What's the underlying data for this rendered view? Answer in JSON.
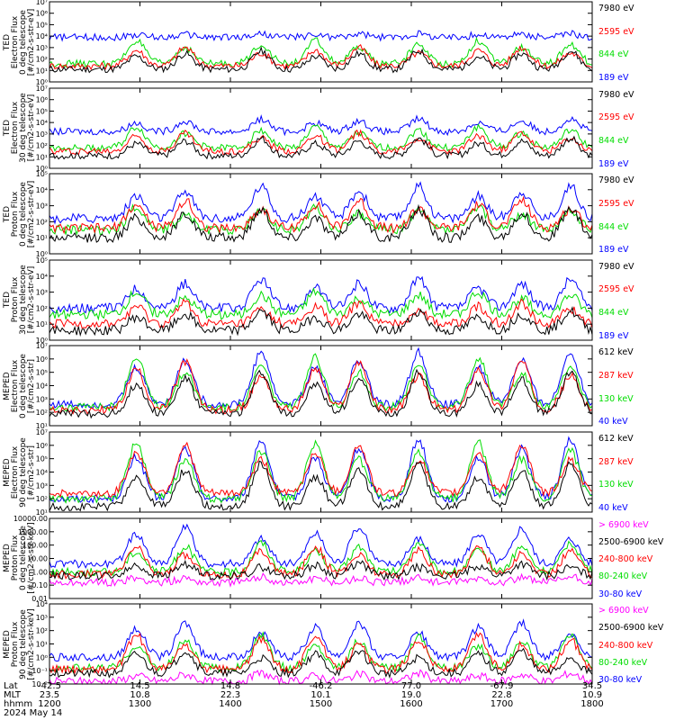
{
  "figure": {
    "date": "2024 May 14",
    "x_rows": [
      "Lat",
      "MLT",
      "hhmm"
    ],
    "x_ticks": [
      {
        "lat": "-42.5",
        "mlt": "23.5",
        "hhmm": "1200"
      },
      {
        "lat": "14.5",
        "mlt": "10.8",
        "hhmm": "1300"
      },
      {
        "lat": "14.8",
        "mlt": "22.3",
        "hhmm": "1400"
      },
      {
        "lat": "-46.2",
        "mlt": "10.1",
        "hhmm": "1500"
      },
      {
        "lat": "77.0",
        "mlt": "19.0",
        "hhmm": "1600"
      },
      {
        "lat": "-67.9",
        "mlt": "22.8",
        "hhmm": "1700"
      },
      {
        "lat": "34.5",
        "mlt": "10.9",
        "hhmm": "1800"
      }
    ]
  },
  "colors": {
    "black": "#000000",
    "blue": "#0000ff",
    "red": "#ff0000",
    "green": "#00dd00",
    "magenta": "#ff00ff"
  },
  "chart_data": [
    {
      "type": "line",
      "ylabel": [
        "TED",
        "Electron Flux",
        "0 deg telescope",
        "[#/cm2-s-str-eV]"
      ],
      "yscale": "log",
      "ylim_exp": [
        0,
        7
      ],
      "tick_labels": [
        "10⁰",
        "10¹",
        "10²",
        "10³",
        "10⁴",
        "10⁵",
        "10⁶",
        "10⁷"
      ],
      "x": [
        1200,
        1800
      ],
      "series": [
        {
          "name": "7980 eV",
          "color": "#000000",
          "base": 1.1,
          "peak": 2.7
        },
        {
          "name": "2595 eV",
          "color": "#ff0000",
          "base": 1.4,
          "peak": 3.0
        },
        {
          "name": "844 eV",
          "color": "#00dd00",
          "base": 1.6,
          "peak": 3.6
        },
        {
          "name": "189 eV",
          "color": "#0000ff",
          "base": 3.9,
          "peak": 4.2
        }
      ]
    },
    {
      "type": "line",
      "ylabel": [
        "TED",
        "Electron Flux",
        "30 deg telescope",
        "[#/cm2-s-str-eV]"
      ],
      "yscale": "log",
      "ylim_exp": [
        0,
        7
      ],
      "tick_labels": [
        "10⁰",
        "10¹",
        "10²",
        "10³",
        "10⁴",
        "10⁵",
        "10⁶",
        "10⁷"
      ],
      "x": [
        1200,
        1800
      ],
      "series": [
        {
          "name": "7980 eV",
          "color": "#000000",
          "base": 1.1,
          "peak": 2.6
        },
        {
          "name": "2595 eV",
          "color": "#ff0000",
          "base": 1.5,
          "peak": 3.1
        },
        {
          "name": "844 eV",
          "color": "#00dd00",
          "base": 1.8,
          "peak": 3.6
        },
        {
          "name": "189 eV",
          "color": "#0000ff",
          "base": 3.2,
          "peak": 4.3
        }
      ]
    },
    {
      "type": "line",
      "ylabel": [
        "TED",
        "Proton Flux",
        "0 deg telescope",
        "[#/cm2-s-str-eV]"
      ],
      "yscale": "log",
      "ylim_exp": [
        0,
        5
      ],
      "tick_labels": [
        "10⁰",
        "10¹",
        "10²",
        "10³",
        "10⁴",
        "10⁵"
      ],
      "x": [
        1200,
        1800
      ],
      "series": [
        {
          "name": "7980 eV",
          "color": "#000000",
          "base": 1.0,
          "peak": 2.8
        },
        {
          "name": "2595 eV",
          "color": "#ff0000",
          "base": 1.6,
          "peak": 3.3
        },
        {
          "name": "844 eV",
          "color": "#00dd00",
          "base": 1.5,
          "peak": 2.9
        },
        {
          "name": "189 eV",
          "color": "#0000ff",
          "base": 2.2,
          "peak": 4.2
        }
      ]
    },
    {
      "type": "line",
      "ylabel": [
        "TED",
        "Proton Flux",
        "30 deg telescope",
        "[#/cm2-s-str-eV]"
      ],
      "yscale": "log",
      "ylim_exp": [
        0,
        5
      ],
      "tick_labels": [
        "10⁰",
        "10¹",
        "10²",
        "10³",
        "10⁴",
        "10⁵"
      ],
      "x": [
        1200,
        1800
      ],
      "series": [
        {
          "name": "7980 eV",
          "color": "#000000",
          "base": 0.6,
          "peak": 1.8
        },
        {
          "name": "2595 eV",
          "color": "#ff0000",
          "base": 1.0,
          "peak": 2.3
        },
        {
          "name": "844 eV",
          "color": "#00dd00",
          "base": 1.6,
          "peak": 3.0
        },
        {
          "name": "189 eV",
          "color": "#0000ff",
          "base": 2.0,
          "peak": 3.8
        }
      ]
    },
    {
      "type": "line",
      "ylabel": [
        "MEPED",
        "Electron Flux",
        "0 deg telescope",
        "[#/cm2-s-str]"
      ],
      "yscale": "log",
      "ylim_exp": [
        1,
        7
      ],
      "tick_labels": [
        "10¹",
        "10²",
        "10³",
        "10⁴",
        "10⁵",
        "10⁶",
        "10⁷"
      ],
      "x": [
        1200,
        1800
      ],
      "series": [
        {
          "name": "612 keV",
          "color": "#000000",
          "base": 1.9,
          "peak": 5.0
        },
        {
          "name": "287 keV",
          "color": "#ff0000",
          "base": 2.2,
          "peak": 5.8
        },
        {
          "name": "130 keV",
          "color": "#00dd00",
          "base": 2.4,
          "peak": 6.1
        },
        {
          "name": "40 keV",
          "color": "#0000ff",
          "base": 2.6,
          "peak": 6.5
        }
      ]
    },
    {
      "type": "line",
      "ylabel": [
        "MEPED",
        "Electron Flux",
        "90 deg telescope",
        "[#/cm2-s-str]"
      ],
      "yscale": "log",
      "ylim_exp": [
        1,
        7
      ],
      "tick_labels": [
        "10¹",
        "10²",
        "10³",
        "10⁴",
        "10⁵",
        "10⁶",
        "10⁷"
      ],
      "x": [
        1200,
        1800
      ],
      "series": [
        {
          "name": "612 keV",
          "color": "#000000",
          "base": 1.4,
          "peak": 4.6
        },
        {
          "name": "287 keV",
          "color": "#ff0000",
          "base": 2.4,
          "peak": 6.0
        },
        {
          "name": "130 keV",
          "color": "#00dd00",
          "base": 2.0,
          "peak": 6.2
        },
        {
          "name": "40 keV",
          "color": "#0000ff",
          "base": 2.0,
          "peak": 6.4
        }
      ]
    },
    {
      "type": "line",
      "ylabel": [
        "MEPED",
        "Proton Flux",
        "0 deg telescope",
        "[#/cm2-s-str-keV]"
      ],
      "yscale": "log",
      "ylim_exp": [
        -2,
        4
      ],
      "tick_labels": [
        "0.01",
        "0.10",
        "1.00",
        "10.00",
        "100.00",
        "1000.00",
        "10000.00"
      ],
      "x": [
        1200,
        1800
      ],
      "series": [
        {
          "name": "> 6900 keV",
          "color": "#ff00ff",
          "base": -0.8,
          "peak": -0.4
        },
        {
          "name": "2500-6900 keV",
          "color": "#000000",
          "base": -0.3,
          "peak": 0.6
        },
        {
          "name": "240-800 keV",
          "color": "#ff0000",
          "base": -0.2,
          "peak": 1.9
        },
        {
          "name": "80-240 keV",
          "color": "#00dd00",
          "base": 0.0,
          "peak": 2.2
        },
        {
          "name": "30-80 keV",
          "color": "#0000ff",
          "base": 0.6,
          "peak": 3.3
        }
      ]
    },
    {
      "type": "line",
      "ylabel": [
        "MEPED",
        "Proton Flux",
        "90 deg telescope",
        "[#/cm2-s-str-keV]"
      ],
      "yscale": "log",
      "ylim_exp": [
        -2,
        4
      ],
      "tick_labels": [
        "10⁻²",
        "10⁻¹",
        "10⁰",
        "10¹",
        "10²",
        "10³",
        "10⁴"
      ],
      "x": [
        1200,
        1800
      ],
      "series": [
        {
          "name": "> 6900 keV",
          "color": "#ff00ff",
          "base": -1.8,
          "peak": -1.2
        },
        {
          "name": "2500-6900 keV",
          "color": "#000000",
          "base": -1.2,
          "peak": 0.5
        },
        {
          "name": "240-800 keV",
          "color": "#ff0000",
          "base": -0.9,
          "peak": 1.7
        },
        {
          "name": "80-240 keV",
          "color": "#00dd00",
          "base": -0.8,
          "peak": 1.6
        },
        {
          "name": "30-80 keV",
          "color": "#0000ff",
          "base": 0.0,
          "peak": 2.6
        }
      ]
    }
  ]
}
